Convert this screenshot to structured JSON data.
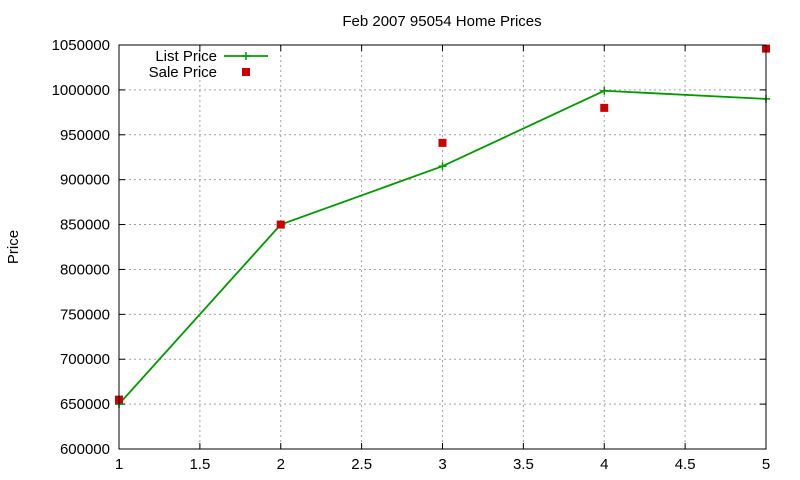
{
  "chart_data": {
    "type": "line",
    "title": "Feb 2007 95054 Home Prices",
    "xlabel": "",
    "ylabel": "Price",
    "xlim": [
      1,
      5
    ],
    "ylim": [
      600000,
      1050000
    ],
    "x_ticks": [
      1,
      1.5,
      2,
      2.5,
      3,
      3.5,
      4,
      4.5,
      5
    ],
    "x_tick_labels": [
      "1",
      "1.5",
      "2",
      "2.5",
      "3",
      "3.5",
      "4",
      "4.5",
      "5"
    ],
    "y_ticks": [
      600000,
      650000,
      700000,
      750000,
      800000,
      850000,
      900000,
      950000,
      1000000,
      1050000
    ],
    "y_tick_labels": [
      "600000",
      "650000",
      "700000",
      "750000",
      "800000",
      "850000",
      "900000",
      "950000",
      "1000000",
      "1050000"
    ],
    "grid": true,
    "legend_position": "top-left",
    "series": [
      {
        "name": "List Price",
        "style": "linespoints",
        "marker": "plus",
        "color": "#009900",
        "x": [
          1,
          2,
          3,
          4,
          5
        ],
        "y": [
          650000,
          850000,
          915000,
          999000,
          990000
        ]
      },
      {
        "name": "Sale Price",
        "style": "points",
        "marker": "square",
        "color": "#cc0000",
        "x": [
          1,
          2,
          3,
          4,
          5
        ],
        "y": [
          655000,
          850000,
          941000,
          980000,
          1046000
        ]
      }
    ]
  }
}
